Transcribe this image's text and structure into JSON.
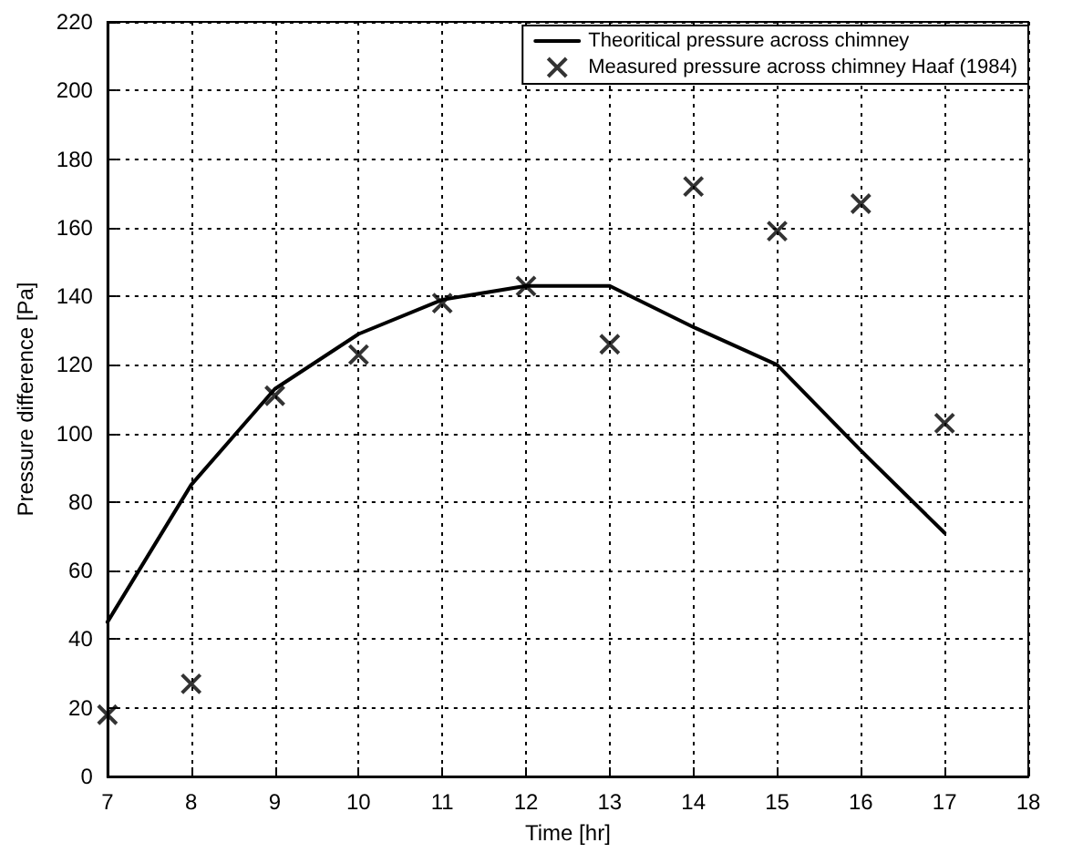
{
  "chart_data": {
    "type": "line",
    "xlabel": "Time [hr]",
    "ylabel": "Pressure difference [Pa]",
    "x": [
      7,
      8,
      9,
      10,
      11,
      12,
      13,
      14,
      15,
      16,
      17
    ],
    "series": [
      {
        "name": "Theoritical pressure across chimney",
        "color": "#000000",
        "marker": "none",
        "line_style": "solid",
        "values": [
          45,
          85,
          113,
          129,
          139,
          143,
          143,
          131,
          120,
          95,
          71
        ]
      },
      {
        "name": "Measured pressure across chimney Haaf (1984)",
        "type": "scatter",
        "color": "#000000",
        "marker": "cross",
        "values": [
          18,
          27,
          111,
          123,
          138,
          143,
          126,
          172,
          159,
          167,
          103
        ]
      }
    ],
    "xlim": [
      7,
      18
    ],
    "xticks": [
      7,
      8,
      9,
      10,
      11,
      12,
      13,
      14,
      15,
      16,
      17,
      18
    ],
    "ylim": [
      0,
      220
    ],
    "yticks": [
      0,
      20,
      40,
      60,
      80,
      100,
      120,
      140,
      160,
      180,
      200,
      220
    ],
    "grid": true,
    "legend": "top right"
  }
}
